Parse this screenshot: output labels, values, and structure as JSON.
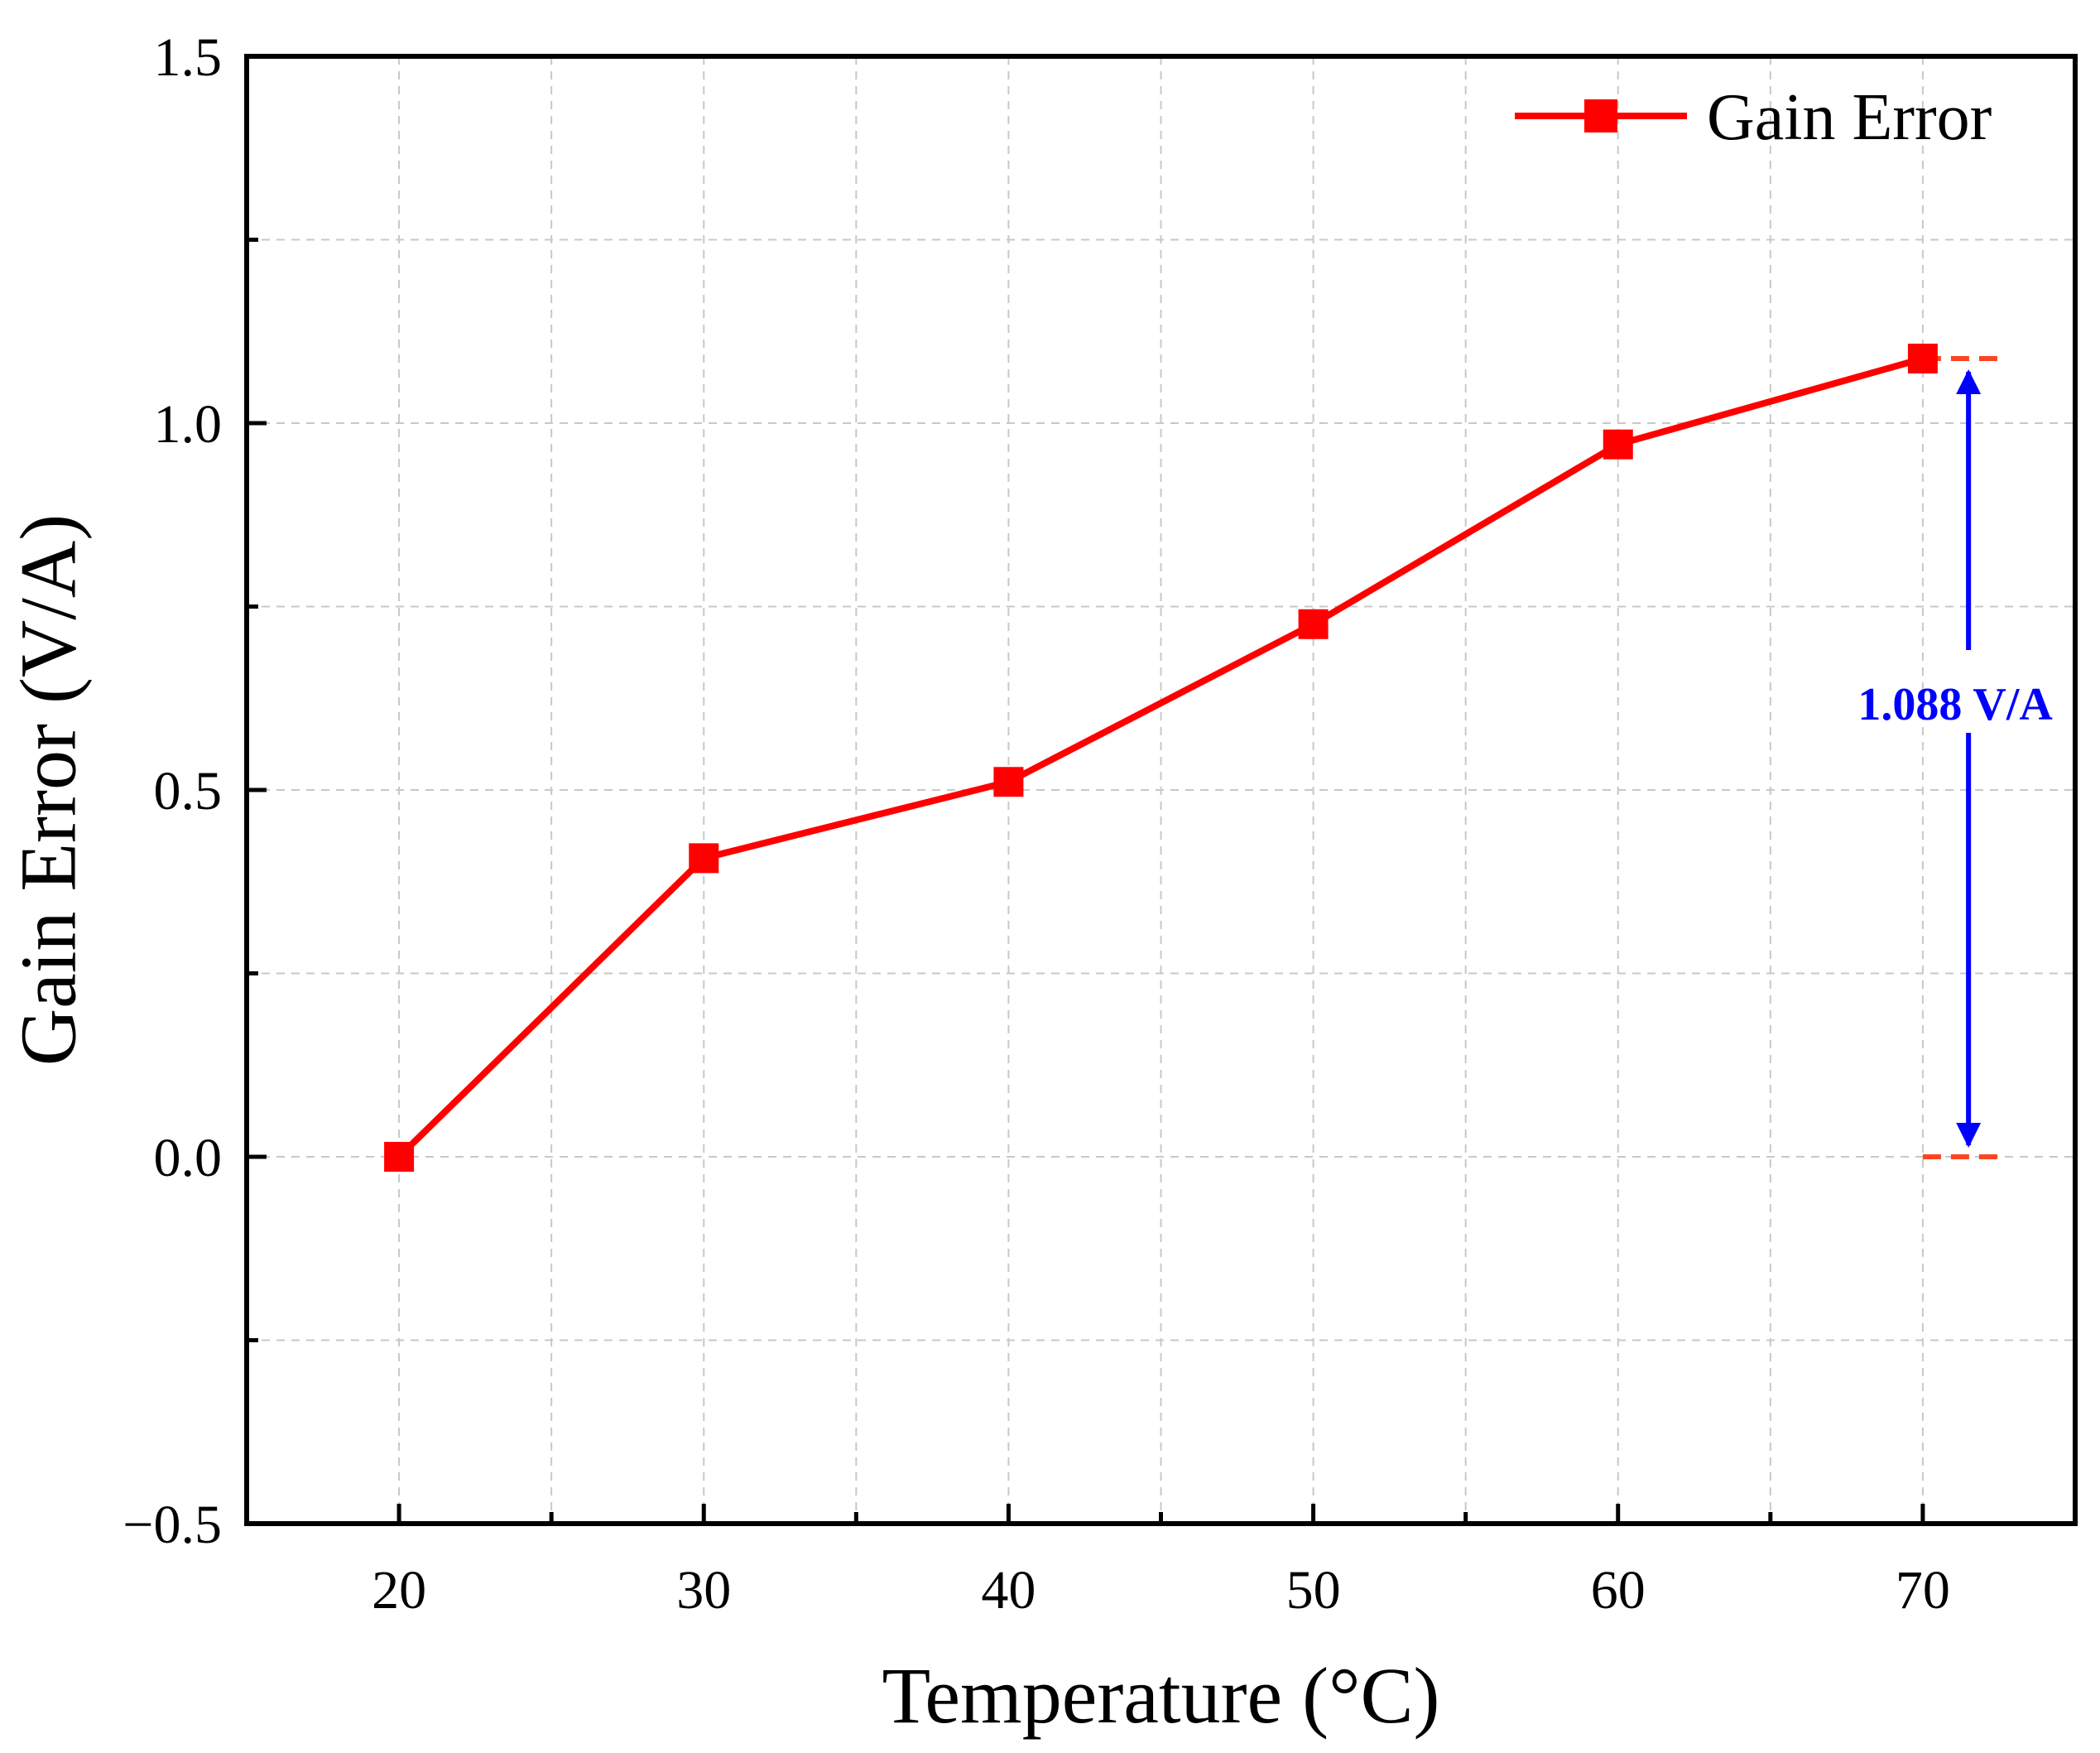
{
  "chart_data": {
    "type": "line",
    "title": "",
    "xlabel": "Temperature (°C)",
    "ylabel": "Gain Error (V/A)",
    "xlim": [
      15,
      75
    ],
    "ylim": [
      -0.5,
      1.5
    ],
    "x_ticks": [
      20,
      30,
      40,
      50,
      60,
      70
    ],
    "x_tick_labels": [
      "20",
      "30",
      "40",
      "50",
      "60",
      "70"
    ],
    "x_minor_ticks": [
      25,
      35,
      45,
      55,
      65
    ],
    "y_ticks": [
      -0.5,
      0.0,
      0.5,
      1.0,
      1.5
    ],
    "y_tick_labels": [
      "−0.5",
      "0.0",
      "0.5",
      "1.0",
      "1.5"
    ],
    "y_minor_ticks": [
      -0.25,
      0.25,
      0.75,
      1.25
    ],
    "grid": true,
    "legend_position": "top-right",
    "series": [
      {
        "name": "Gain Error",
        "color": "#ff0000",
        "marker": "square",
        "x": [
          20,
          30,
          40,
          50,
          60,
          70
        ],
        "y": [
          0.0,
          0.407,
          0.511,
          0.726,
          0.971,
          1.088
        ]
      }
    ],
    "annotation": {
      "label": "1.088 V/A",
      "color": "#0000ff",
      "x": 71.5,
      "from": 1.088,
      "to": 0.0,
      "reference_lines": [
        {
          "y": 1.088,
          "x_start": 70,
          "x_end": 72.5,
          "color": "#ff4422"
        },
        {
          "y": 0.0,
          "x_start": 70,
          "x_end": 72.5,
          "color": "#ff4422"
        }
      ]
    }
  }
}
